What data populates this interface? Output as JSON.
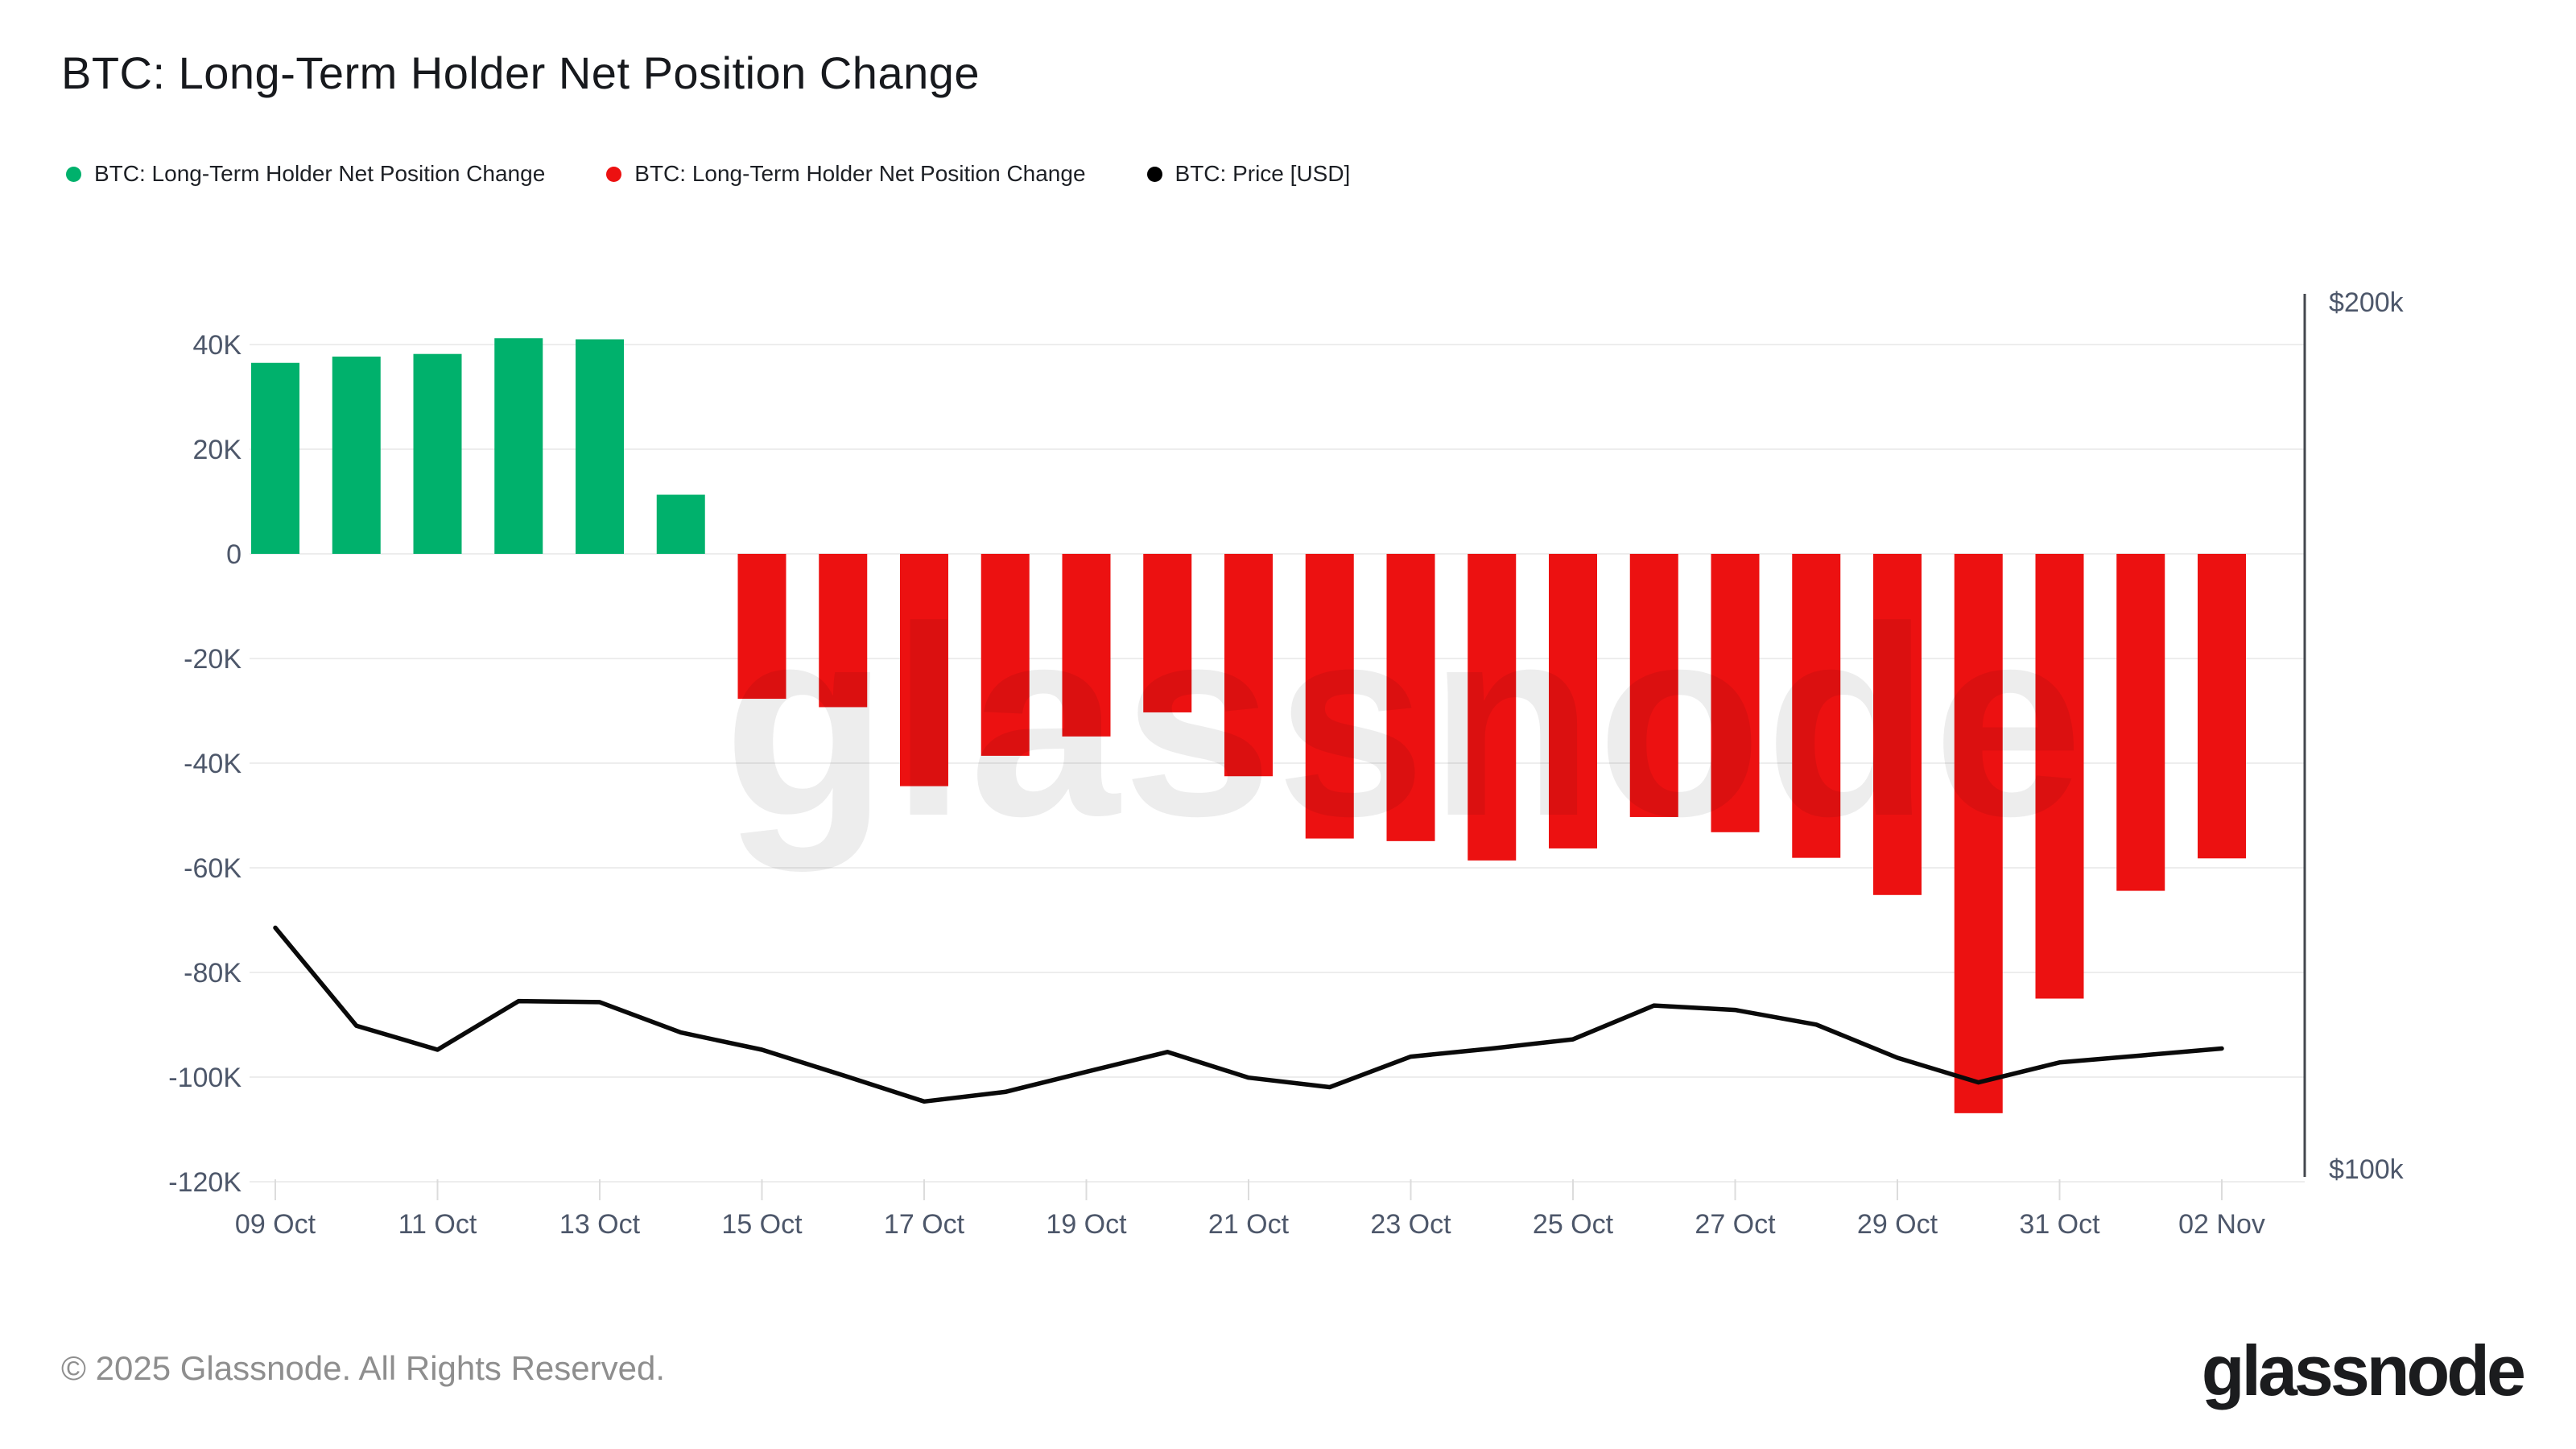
{
  "header": {
    "title": "BTC: Long-Term Holder Net Position Change"
  },
  "legend": {
    "items": [
      {
        "label": "BTC: Long-Term Holder Net Position Change",
        "color": "#00b16c"
      },
      {
        "label": "BTC: Long-Term Holder Net Position Change",
        "color": "#ec1111"
      },
      {
        "label": "BTC: Price [USD]",
        "color": "#000000"
      }
    ]
  },
  "watermark": {
    "text": "glassnode"
  },
  "footer": {
    "copyright": "© 2025 Glassnode. All Rights Reserved.",
    "brand": "glassnode"
  },
  "colors": {
    "positive_bar": "#00b16c",
    "negative_bar": "#ec1111",
    "price_line": "#0a0a0a",
    "gridline": "#ededed",
    "axis_line": "#43474e",
    "axis_label": "#4d576a",
    "tick_stub": "#dcdcdc",
    "watermark": "rgba(18,18,18,0.075)",
    "background": "#ffffff"
  },
  "chart_data": {
    "type": "bar",
    "title": "BTC: Long-Term Holder Net Position Change",
    "grid": true,
    "legend_position": "top-left",
    "categories": [
      "09 Oct",
      "10 Oct",
      "11 Oct",
      "12 Oct",
      "13 Oct",
      "14 Oct",
      "15 Oct",
      "16 Oct",
      "17 Oct",
      "18 Oct",
      "19 Oct",
      "20 Oct",
      "21 Oct",
      "22 Oct",
      "23 Oct",
      "24 Oct",
      "25 Oct",
      "26 Oct",
      "27 Oct",
      "28 Oct",
      "29 Oct",
      "30 Oct",
      "31 Oct",
      "01 Nov",
      "02 Nov"
    ],
    "series": [
      {
        "name": "BTC: Long-Term Holder Net Position Change",
        "type": "bar",
        "unit": "thousand BTC",
        "values": [
          36.5,
          37.7,
          38.2,
          41.2,
          41.0,
          11.3,
          -27.7,
          -29.3,
          -44.4,
          -38.6,
          -34.9,
          -30.3,
          -42.5,
          -54.4,
          -54.9,
          -58.6,
          -56.3,
          -50.3,
          -53.2,
          -58.1,
          -65.2,
          -106.9,
          -85.0,
          -64.4,
          -58.2
        ]
      },
      {
        "name": "BTC: Price [USD]",
        "type": "line",
        "unit": "thousand USD",
        "values": [
          121.6,
          112.6,
          110.5,
          114.8,
          114.7,
          112.0,
          110.5,
          108.3,
          106.1,
          106.9,
          108.6,
          110.3,
          108.1,
          107.3,
          109.9,
          110.6,
          111.4,
          114.4,
          114.0,
          112.7,
          109.8,
          107.7,
          109.4,
          110.0,
          110.6
        ]
      }
    ],
    "left_axis": {
      "unit": "thousand BTC",
      "range": [
        -120,
        40
      ],
      "ticks": [
        {
          "v": 40,
          "label": "40K"
        },
        {
          "v": 20,
          "label": "20K"
        },
        {
          "v": 0,
          "label": "0"
        },
        {
          "v": -20,
          "label": "-20K"
        },
        {
          "v": -40,
          "label": "-40K"
        },
        {
          "v": -60,
          "label": "-60K"
        },
        {
          "v": -80,
          "label": "-80K"
        },
        {
          "v": -100,
          "label": "-100K"
        },
        {
          "v": -120,
          "label": "-120K"
        }
      ]
    },
    "right_axis": {
      "title": "BTC: Price [USD]",
      "scale": "log",
      "min_usd_k": 100,
      "max_usd_k": 200,
      "labels": [
        "$200k",
        "$100k"
      ]
    },
    "x_axis": {
      "tick_indices": [
        0,
        2,
        4,
        6,
        8,
        10,
        12,
        14,
        16,
        18,
        20,
        22,
        24
      ],
      "tick_labels": [
        "09 Oct",
        "11 Oct",
        "13 Oct",
        "15 Oct",
        "17 Oct",
        "19 Oct",
        "21 Oct",
        "23 Oct",
        "25 Oct",
        "27 Oct",
        "29 Oct",
        "31 Oct",
        "02 Nov"
      ]
    }
  }
}
